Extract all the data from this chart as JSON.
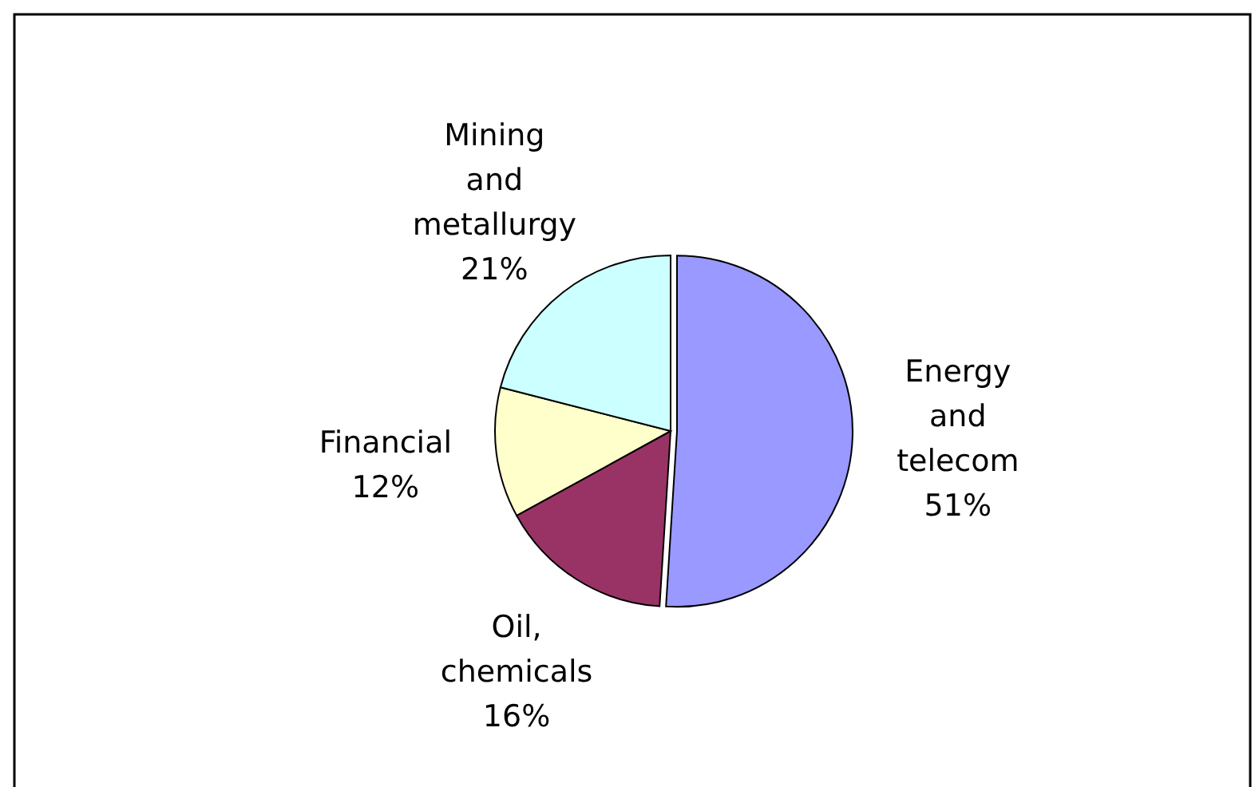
{
  "chart_data": {
    "type": "pie",
    "categories": [
      "Energy and telecom",
      "Oil, chemicals",
      "Financial",
      "Mining and metallurgy"
    ],
    "values": [
      51,
      16,
      12,
      21
    ],
    "value_labels": [
      "51%",
      "16%",
      "12%",
      "21%"
    ],
    "colors": [
      "#9999ff",
      "#993366",
      "#ffffcc",
      "#ccffff"
    ]
  }
}
